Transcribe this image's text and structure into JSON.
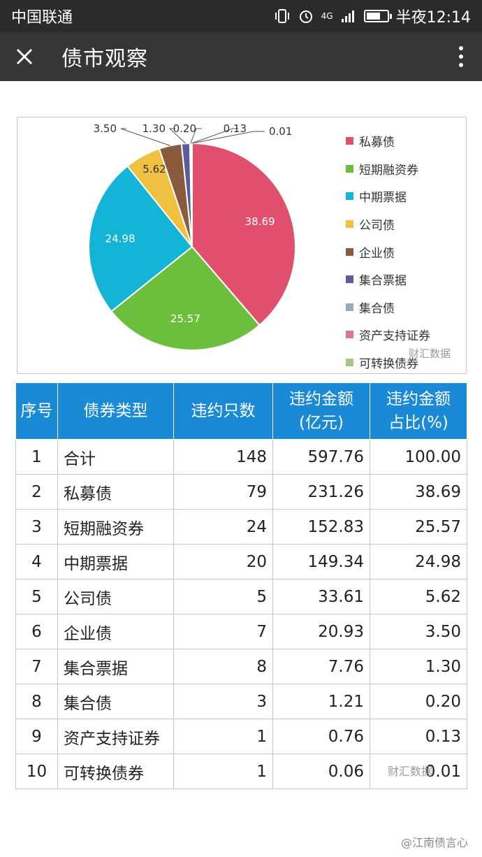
{
  "status_bar": {
    "carrier": "中国联通",
    "network": "4G",
    "time": "半夜12:14",
    "battery_level": 0.7
  },
  "nav": {
    "title": "债市观察"
  },
  "chart_data": {
    "type": "pie",
    "categories": [
      "私募债",
      "短期融资券",
      "中期票据",
      "公司债",
      "企业债",
      "集合票据",
      "集合债",
      "资产支持证券",
      "可转换债券"
    ],
    "values": [
      38.69,
      25.57,
      24.98,
      5.62,
      3.5,
      1.3,
      0.2,
      0.13,
      0.01
    ],
    "labels": [
      "38.69",
      "25.57",
      "24.98",
      "5.62",
      "3.50",
      "1.30",
      "0.20",
      "0.13",
      "0.01"
    ],
    "colors": [
      "#e0506c",
      "#6cbf3c",
      "#14b4d6",
      "#f0c040",
      "#8a5a3c",
      "#5c5c9c",
      "#9aa8c0",
      "#d87890",
      "#a8c888"
    ],
    "legend_position": "right",
    "watermark": "财汇数据"
  },
  "table": {
    "headers": [
      "序号",
      "债券类型",
      "违约只数",
      "违约金额\n(亿元)",
      "违约金额\n占比(%)"
    ],
    "rows": [
      [
        "1",
        "合计",
        "148",
        "597.76",
        "100.00"
      ],
      [
        "2",
        "私募债",
        "79",
        "231.26",
        "38.69"
      ],
      [
        "3",
        "短期融资券",
        "24",
        "152.83",
        "25.57"
      ],
      [
        "4",
        "中期票据",
        "20",
        "149.34",
        "24.98"
      ],
      [
        "5",
        "公司债",
        "5",
        "33.61",
        "5.62"
      ],
      [
        "6",
        "企业债",
        "7",
        "20.93",
        "3.50"
      ],
      [
        "7",
        "集合票据",
        "8",
        "7.76",
        "1.30"
      ],
      [
        "8",
        "集合债",
        "3",
        "1.21",
        "0.20"
      ],
      [
        "9",
        "资产支持证券",
        "1",
        "0.76",
        "0.13"
      ],
      [
        "10",
        "可转换债券",
        "1",
        "0.06",
        "0.01"
      ]
    ],
    "watermark": "财汇数据"
  },
  "footer": {
    "mark": "@江南债言心"
  }
}
